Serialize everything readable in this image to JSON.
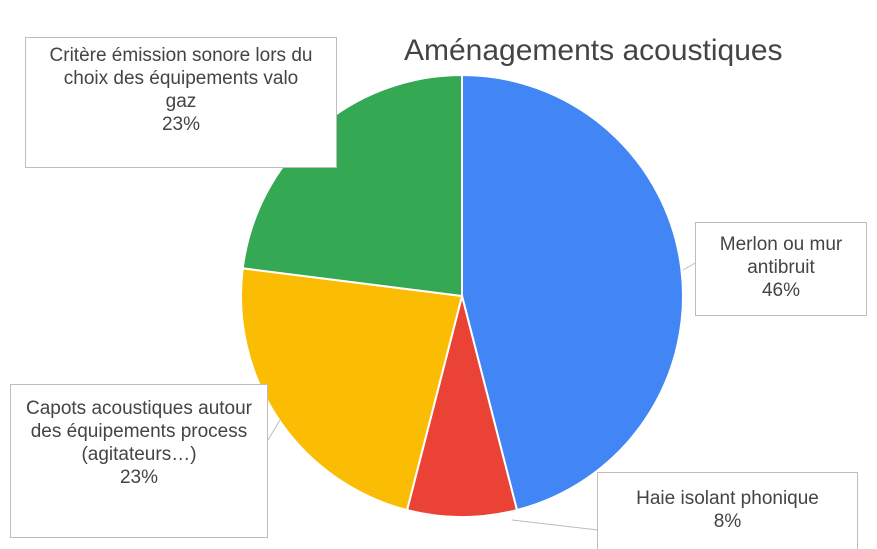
{
  "chart_data": {
    "type": "pie",
    "title": "Aménagements acoustiques",
    "categories": [
      "Merlon ou mur antibruit",
      "Haie isolant phonique",
      "Capots acoustiques autour des équipements process (agitateurs…)",
      "Critère émission sonore lors du choix des équipements valo gaz"
    ],
    "values": [
      46,
      8,
      23,
      23
    ],
    "value_labels": [
      "46%",
      "8%",
      "23%",
      "23%"
    ],
    "colors": [
      "#4285f4",
      "#ea4335",
      "#fbbc04",
      "#34a853"
    ]
  }
}
